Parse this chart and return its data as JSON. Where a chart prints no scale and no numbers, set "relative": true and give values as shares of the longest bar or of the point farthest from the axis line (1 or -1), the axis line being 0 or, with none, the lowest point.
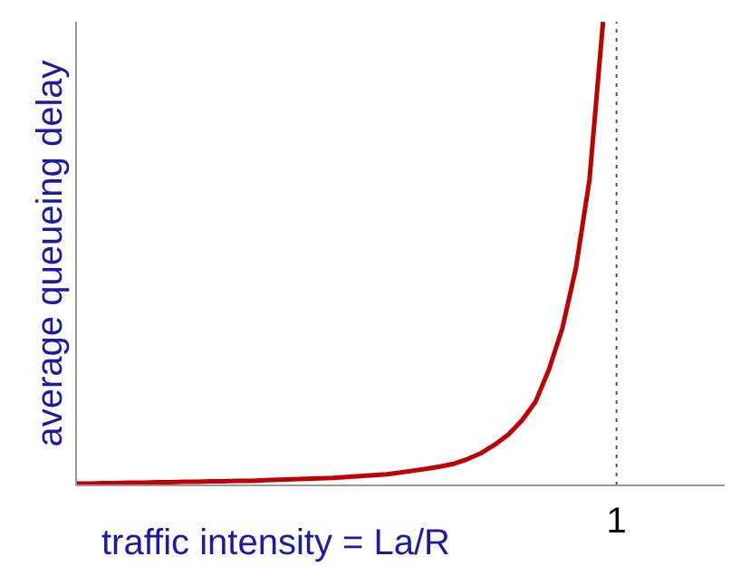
{
  "chart_data": {
    "type": "line",
    "xlabel": "traffic intensity = La/R",
    "ylabel": "average queueing delay",
    "relative": true,
    "categories": [
      null,
      null,
      null,
      null,
      null,
      null,
      null,
      null,
      null,
      null,
      null,
      null,
      null,
      null,
      null,
      null,
      null,
      null,
      null,
      null,
      null,
      null,
      null,
      null,
      null,
      null,
      null,
      null,
      null,
      null,
      null,
      null,
      null,
      null,
      null,
      null,
      null,
      null,
      null,
      null,
      null,
      null,
      null,
      null,
      null,
      null,
      null,
      null,
      null
    ],
    "series": [
      {
        "color": "#c00000",
        "values": [
          0.004,
          0.004,
          0.005,
          0.005,
          0.006,
          0.006,
          0.007,
          0.007,
          0.008,
          0.008,
          0.009,
          0.009,
          0.01,
          0.01,
          0.011,
          0.012,
          0.013,
          0.014,
          0.015,
          0.016,
          0.018,
          0.02,
          0.022,
          0.024,
          0.028,
          0.032,
          0.036,
          0.041,
          0.047,
          0.057,
          0.07,
          0.088,
          0.11,
          0.14,
          0.18,
          0.25,
          0.34,
          0.47,
          0.66,
          1,
          null,
          null,
          null,
          null,
          null,
          null,
          null,
          null,
          null
        ]
      }
    ],
    "annotations": [
      "1"
    ],
    "marker": "none",
    "line_style": "solid",
    "grid": false,
    "legend": false
  }
}
